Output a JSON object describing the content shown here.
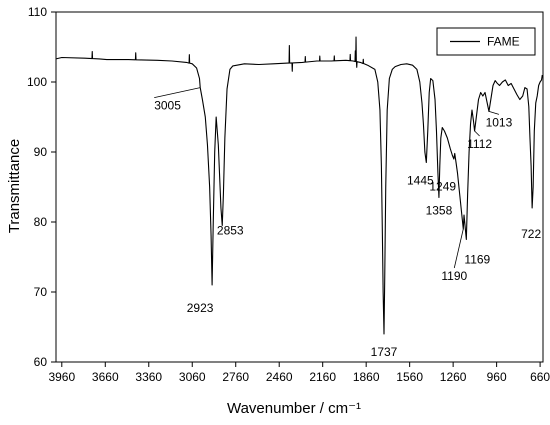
{
  "chart_data": {
    "type": "line",
    "title": "",
    "xlabel": "Wavenumber / cm⁻¹",
    "ylabel": "Transmittance",
    "xlim": [
      4000,
      640
    ],
    "ylim": [
      60,
      110
    ],
    "x_reversed": true,
    "xticks": [
      3960,
      3660,
      3360,
      3060,
      2760,
      2460,
      2160,
      1860,
      1560,
      1260,
      960,
      660
    ],
    "yticks": [
      60,
      70,
      80,
      90,
      100,
      110
    ],
    "grid": false,
    "legend": {
      "placement": "top-right",
      "entries": [
        "FAME"
      ]
    },
    "series": [
      {
        "name": "FAME",
        "color": "#000000",
        "x": [
          4000,
          3960,
          3800,
          3700,
          3650,
          3500,
          3300,
          3200,
          3100,
          3060,
          3030,
          3010,
          3005,
          2990,
          2970,
          2955,
          2940,
          2930,
          2923,
          2915,
          2905,
          2895,
          2880,
          2870,
          2862,
          2853,
          2845,
          2835,
          2820,
          2800,
          2780,
          2700,
          2600,
          2500,
          2400,
          2300,
          2200,
          2100,
          2000,
          1950,
          1900,
          1850,
          1800,
          1780,
          1765,
          1755,
          1748,
          1743,
          1737,
          1732,
          1725,
          1715,
          1700,
          1680,
          1660,
          1620,
          1580,
          1540,
          1510,
          1490,
          1475,
          1465,
          1455,
          1445,
          1435,
          1425,
          1415,
          1400,
          1385,
          1375,
          1365,
          1358,
          1352,
          1345,
          1335,
          1320,
          1300,
          1280,
          1265,
          1255,
          1249,
          1240,
          1230,
          1220,
          1210,
          1200,
          1195,
          1190,
          1185,
          1178,
          1169,
          1160,
          1150,
          1140,
          1130,
          1120,
          1112,
          1100,
          1085,
          1070,
          1055,
          1040,
          1025,
          1013,
          1000,
          985,
          970,
          955,
          940,
          920,
          900,
          880,
          860,
          840,
          820,
          800,
          780,
          765,
          750,
          738,
          730,
          722,
          715,
          708,
          700,
          690,
          680,
          670,
          660,
          650,
          645
        ],
        "y": [
          103.3,
          103.5,
          103.4,
          103.3,
          103.2,
          103.2,
          103.1,
          103.0,
          102.8,
          102.6,
          102.0,
          100.5,
          99.2,
          97.5,
          95.0,
          91.0,
          85.0,
          78.0,
          71.0,
          80.0,
          90.0,
          95.0,
          91.0,
          86.0,
          82.0,
          79.5,
          84.0,
          92.0,
          99.0,
          101.8,
          102.3,
          102.6,
          102.5,
          102.6,
          102.7,
          102.8,
          103.0,
          103.0,
          103.1,
          103.0,
          102.8,
          102.4,
          101.8,
          100.0,
          96.0,
          88.0,
          78.0,
          70.0,
          64.0,
          72.0,
          85.0,
          96.0,
          100.5,
          101.8,
          102.2,
          102.5,
          102.6,
          102.4,
          101.8,
          100.0,
          97.0,
          94.0,
          90.0,
          88.5,
          93.0,
          98.5,
          100.5,
          100.2,
          97.5,
          93.0,
          87.0,
          83.5,
          88.0,
          92.0,
          93.5,
          93.0,
          92.0,
          90.5,
          89.5,
          89.0,
          89.8,
          88.5,
          87.0,
          85.0,
          83.0,
          81.0,
          80.0,
          79.0,
          81.0,
          79.5,
          77.5,
          84.0,
          90.0,
          94.0,
          96.0,
          94.5,
          93.0,
          95.0,
          97.5,
          98.5,
          98.0,
          98.5,
          97.0,
          95.8,
          97.5,
          99.5,
          100.2,
          99.8,
          99.5,
          100.0,
          100.3,
          99.5,
          99.8,
          99.0,
          98.2,
          97.5,
          98.0,
          99.2,
          99.0,
          96.5,
          92.0,
          88.0,
          82.0,
          85.0,
          93.0,
          97.0,
          98.0,
          99.5,
          100.0,
          100.3,
          101.0
        ],
        "noise_spikes": [
          [
            3750,
            1.0
          ],
          [
            3450,
            1.0
          ],
          [
            3080,
            1.2
          ],
          [
            2390,
            2.5
          ],
          [
            2370,
            -1.2
          ],
          [
            2280,
            0.8
          ],
          [
            2180,
            0.7
          ],
          [
            2080,
            0.7
          ],
          [
            1970,
            0.9
          ],
          [
            1935,
            1.5
          ],
          [
            1930,
            3.5
          ],
          [
            1925,
            -0.8
          ],
          [
            1880,
            0.6
          ]
        ]
      }
    ],
    "annotations": [
      {
        "text": "3005",
        "x": 3005,
        "y": 99.2
      },
      {
        "text": "2923",
        "x": 2923,
        "y": 71.0
      },
      {
        "text": "2853",
        "x": 2853,
        "y": 79.5
      },
      {
        "text": "1737",
        "x": 1737,
        "y": 64.0
      },
      {
        "text": "1445",
        "x": 1445,
        "y": 88.5
      },
      {
        "text": "1358",
        "x": 1358,
        "y": 83.5
      },
      {
        "text": "1249",
        "x": 1249,
        "y": 89.8
      },
      {
        "text": "1190",
        "x": 1190,
        "y": 79.0
      },
      {
        "text": "1169",
        "x": 1169,
        "y": 77.5
      },
      {
        "text": "1112",
        "x": 1112,
        "y": 93.0
      },
      {
        "text": "1013",
        "x": 1013,
        "y": 95.8
      },
      {
        "text": "722",
        "x": 722,
        "y": 82.0
      }
    ]
  }
}
